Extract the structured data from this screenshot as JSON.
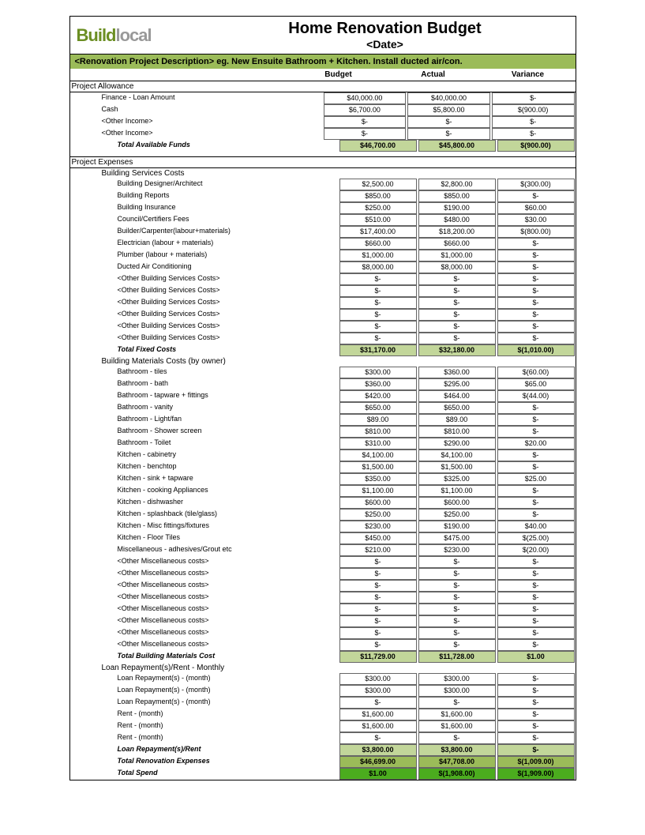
{
  "logo": {
    "part1": "Build",
    "part2": "local"
  },
  "title": "Home Renovation Budget",
  "subtitle": "<Date>",
  "description": "<Renovation Project Description> eg. New Ensuite Bathroom + Kitchen. Install ducted air/con.",
  "columns": {
    "c1": "Budget",
    "c2": "Actual",
    "c3": "Variance"
  },
  "colors": {
    "header_band": "#9bbb59",
    "total_light": "#c2d69a",
    "total_dark": "#9bbb59",
    "total_bright": "#4bac1e"
  },
  "sections": {
    "allowance": {
      "title": "Project Allowance",
      "rows": [
        {
          "label": "Finance - Loan Amount",
          "b": "$40,000.00",
          "a": "$40,000.00",
          "v": "$-"
        },
        {
          "label": "Cash",
          "b": "$6,700.00",
          "a": "$5,800.00",
          "v": "$(900.00)"
        },
        {
          "label": "<Other Income>",
          "b": "$-",
          "a": "$-",
          "v": "$-"
        },
        {
          "label": "<Other Income>",
          "b": "$-",
          "a": "$-",
          "v": "$-"
        }
      ],
      "total": {
        "label": "Total Available Funds",
        "b": "$46,700.00",
        "a": "$45,800.00",
        "v": "$(900.00)"
      }
    },
    "expenses": {
      "title": "Project Expenses",
      "services": {
        "title": "Building Services Costs",
        "rows": [
          {
            "label": "Building Designer/Architect",
            "b": "$2,500.00",
            "a": "$2,800.00",
            "v": "$(300.00)"
          },
          {
            "label": "Building Reports",
            "b": "$850.00",
            "a": "$850.00",
            "v": "$-"
          },
          {
            "label": "Building Insurance",
            "b": "$250.00",
            "a": "$190.00",
            "v": "$60.00"
          },
          {
            "label": "Council/Certifiers Fees",
            "b": "$510.00",
            "a": "$480.00",
            "v": "$30.00"
          },
          {
            "label": "Builder/Carpenter(labour+materials)",
            "b": "$17,400.00",
            "a": "$18,200.00",
            "v": "$(800.00)"
          },
          {
            "label": "Electrician (labour + materials)",
            "b": "$660.00",
            "a": "$660.00",
            "v": "$-"
          },
          {
            "label": "Plumber (labour + materials)",
            "b": "$1,000.00",
            "a": "$1,000.00",
            "v": "$-"
          },
          {
            "label": "Ducted Air Conditioning",
            "b": "$8,000.00",
            "a": "$8,000.00",
            "v": "$-"
          },
          {
            "label": "<Other Building Services Costs>",
            "b": "$-",
            "a": "$-",
            "v": "$-"
          },
          {
            "label": "<Other Building Services Costs>",
            "b": "$-",
            "a": "$-",
            "v": "$-"
          },
          {
            "label": "<Other Building Services Costs>",
            "b": "$-",
            "a": "$-",
            "v": "$-"
          },
          {
            "label": "<Other Building Services Costs>",
            "b": "$-",
            "a": "$-",
            "v": "$-"
          },
          {
            "label": "<Other Building Services Costs>",
            "b": "$-",
            "a": "$-",
            "v": "$-"
          },
          {
            "label": "<Other Building Services Costs>",
            "b": "$-",
            "a": "$-",
            "v": "$-"
          }
        ],
        "total": {
          "label": "Total Fixed Costs",
          "b": "$31,170.00",
          "a": "$32,180.00",
          "v": "$(1,010.00)"
        }
      },
      "materials": {
        "title": "Building Materials Costs (by owner)",
        "rows": [
          {
            "label": "Bathroom - tiles",
            "b": "$300.00",
            "a": "$360.00",
            "v": "$(60.00)"
          },
          {
            "label": "Bathroom - bath",
            "b": "$360.00",
            "a": "$295.00",
            "v": "$65.00"
          },
          {
            "label": "Bathroom - tapware + fittings",
            "b": "$420.00",
            "a": "$464.00",
            "v": "$(44.00)"
          },
          {
            "label": "Bathroom - vanity",
            "b": "$650.00",
            "a": "$650.00",
            "v": "$-"
          },
          {
            "label": "Bathroom - Light/fan",
            "b": "$89.00",
            "a": "$89.00",
            "v": "$-"
          },
          {
            "label": "Bathroom - Shower screen",
            "b": "$810.00",
            "a": "$810.00",
            "v": "$-"
          },
          {
            "label": "Bathroom - Toilet",
            "b": "$310.00",
            "a": "$290.00",
            "v": "$20.00"
          },
          {
            "label": "Kitchen - cabinetry",
            "b": "$4,100.00",
            "a": "$4,100.00",
            "v": "$-"
          },
          {
            "label": "Kitchen - benchtop",
            "b": "$1,500.00",
            "a": "$1,500.00",
            "v": "$-"
          },
          {
            "label": "Kitchen - sink + tapware",
            "b": "$350.00",
            "a": "$325.00",
            "v": "$25.00"
          },
          {
            "label": "Kitchen - cooking Appliances",
            "b": "$1,100.00",
            "a": "$1,100.00",
            "v": "$-"
          },
          {
            "label": "Kitchen - dishwasher",
            "b": "$600.00",
            "a": "$600.00",
            "v": "$-"
          },
          {
            "label": "Kitchen - splashback (tile/glass)",
            "b": "$250.00",
            "a": "$250.00",
            "v": "$-"
          },
          {
            "label": "Kitchen - Misc fittings/fixtures",
            "b": "$230.00",
            "a": "$190.00",
            "v": "$40.00"
          },
          {
            "label": "Kitchen - Floor Tiles",
            "b": "$450.00",
            "a": "$475.00",
            "v": "$(25.00)"
          },
          {
            "label": "Miscellaneous - adhesives/Grout etc",
            "b": "$210.00",
            "a": "$230.00",
            "v": "$(20.00)"
          },
          {
            "label": "<Other Miscellaneous costs>",
            "b": "$-",
            "a": "$-",
            "v": "$-"
          },
          {
            "label": "<Other Miscellaneous costs>",
            "b": "$-",
            "a": "$-",
            "v": "$-"
          },
          {
            "label": "<Other Miscellaneous costs>",
            "b": "$-",
            "a": "$-",
            "v": "$-"
          },
          {
            "label": "<Other Miscellaneous costs>",
            "b": "$-",
            "a": "$-",
            "v": "$-"
          },
          {
            "label": "<Other Miscellaneous costs>",
            "b": "$-",
            "a": "$-",
            "v": "$-"
          },
          {
            "label": "<Other Miscellaneous costs>",
            "b": "$-",
            "a": "$-",
            "v": "$-"
          },
          {
            "label": "<Other Miscellaneous costs>",
            "b": "$-",
            "a": "$-",
            "v": "$-"
          },
          {
            "label": "<Other Miscellaneous costs>",
            "b": "$-",
            "a": "$-",
            "v": "$-"
          }
        ],
        "total": {
          "label": "Total Building Materials Cost",
          "b": "$11,729.00",
          "a": "$11,728.00",
          "v": "$1.00"
        }
      },
      "loan": {
        "title": "Loan Repayment(s)/Rent - Monthly",
        "rows": [
          {
            "label": "Loan Repayment(s) - (month)",
            "b": "$300.00",
            "a": "$300.00",
            "v": "$-"
          },
          {
            "label": "Loan Repayment(s) - (month)",
            "b": "$300.00",
            "a": "$300.00",
            "v": "$-"
          },
          {
            "label": "Loan Repayment(s) - (month)",
            "b": "$-",
            "a": "$-",
            "v": "$-"
          },
          {
            "label": "Rent - (month)",
            "b": "$1,600.00",
            "a": "$1,600.00",
            "v": "$-"
          },
          {
            "label": "Rent - (month)",
            "b": "$1,600.00",
            "a": "$1,600.00",
            "v": "$-"
          },
          {
            "label": "Rent - (month)",
            "b": "$-",
            "a": "$-",
            "v": "$-"
          }
        ],
        "total1": {
          "label": "Loan Repayment(s)/Rent",
          "b": "$3,800.00",
          "a": "$3,800.00",
          "v": "$-"
        },
        "total2": {
          "label": "Total Renovation Expenses",
          "b": "$46,699.00",
          "a": "$47,708.00",
          "v": "$(1,009.00)"
        },
        "total3": {
          "label": "Total Spend",
          "b": "$1.00",
          "a": "$(1,908.00)",
          "v": "$(1,909.00)"
        }
      }
    }
  }
}
